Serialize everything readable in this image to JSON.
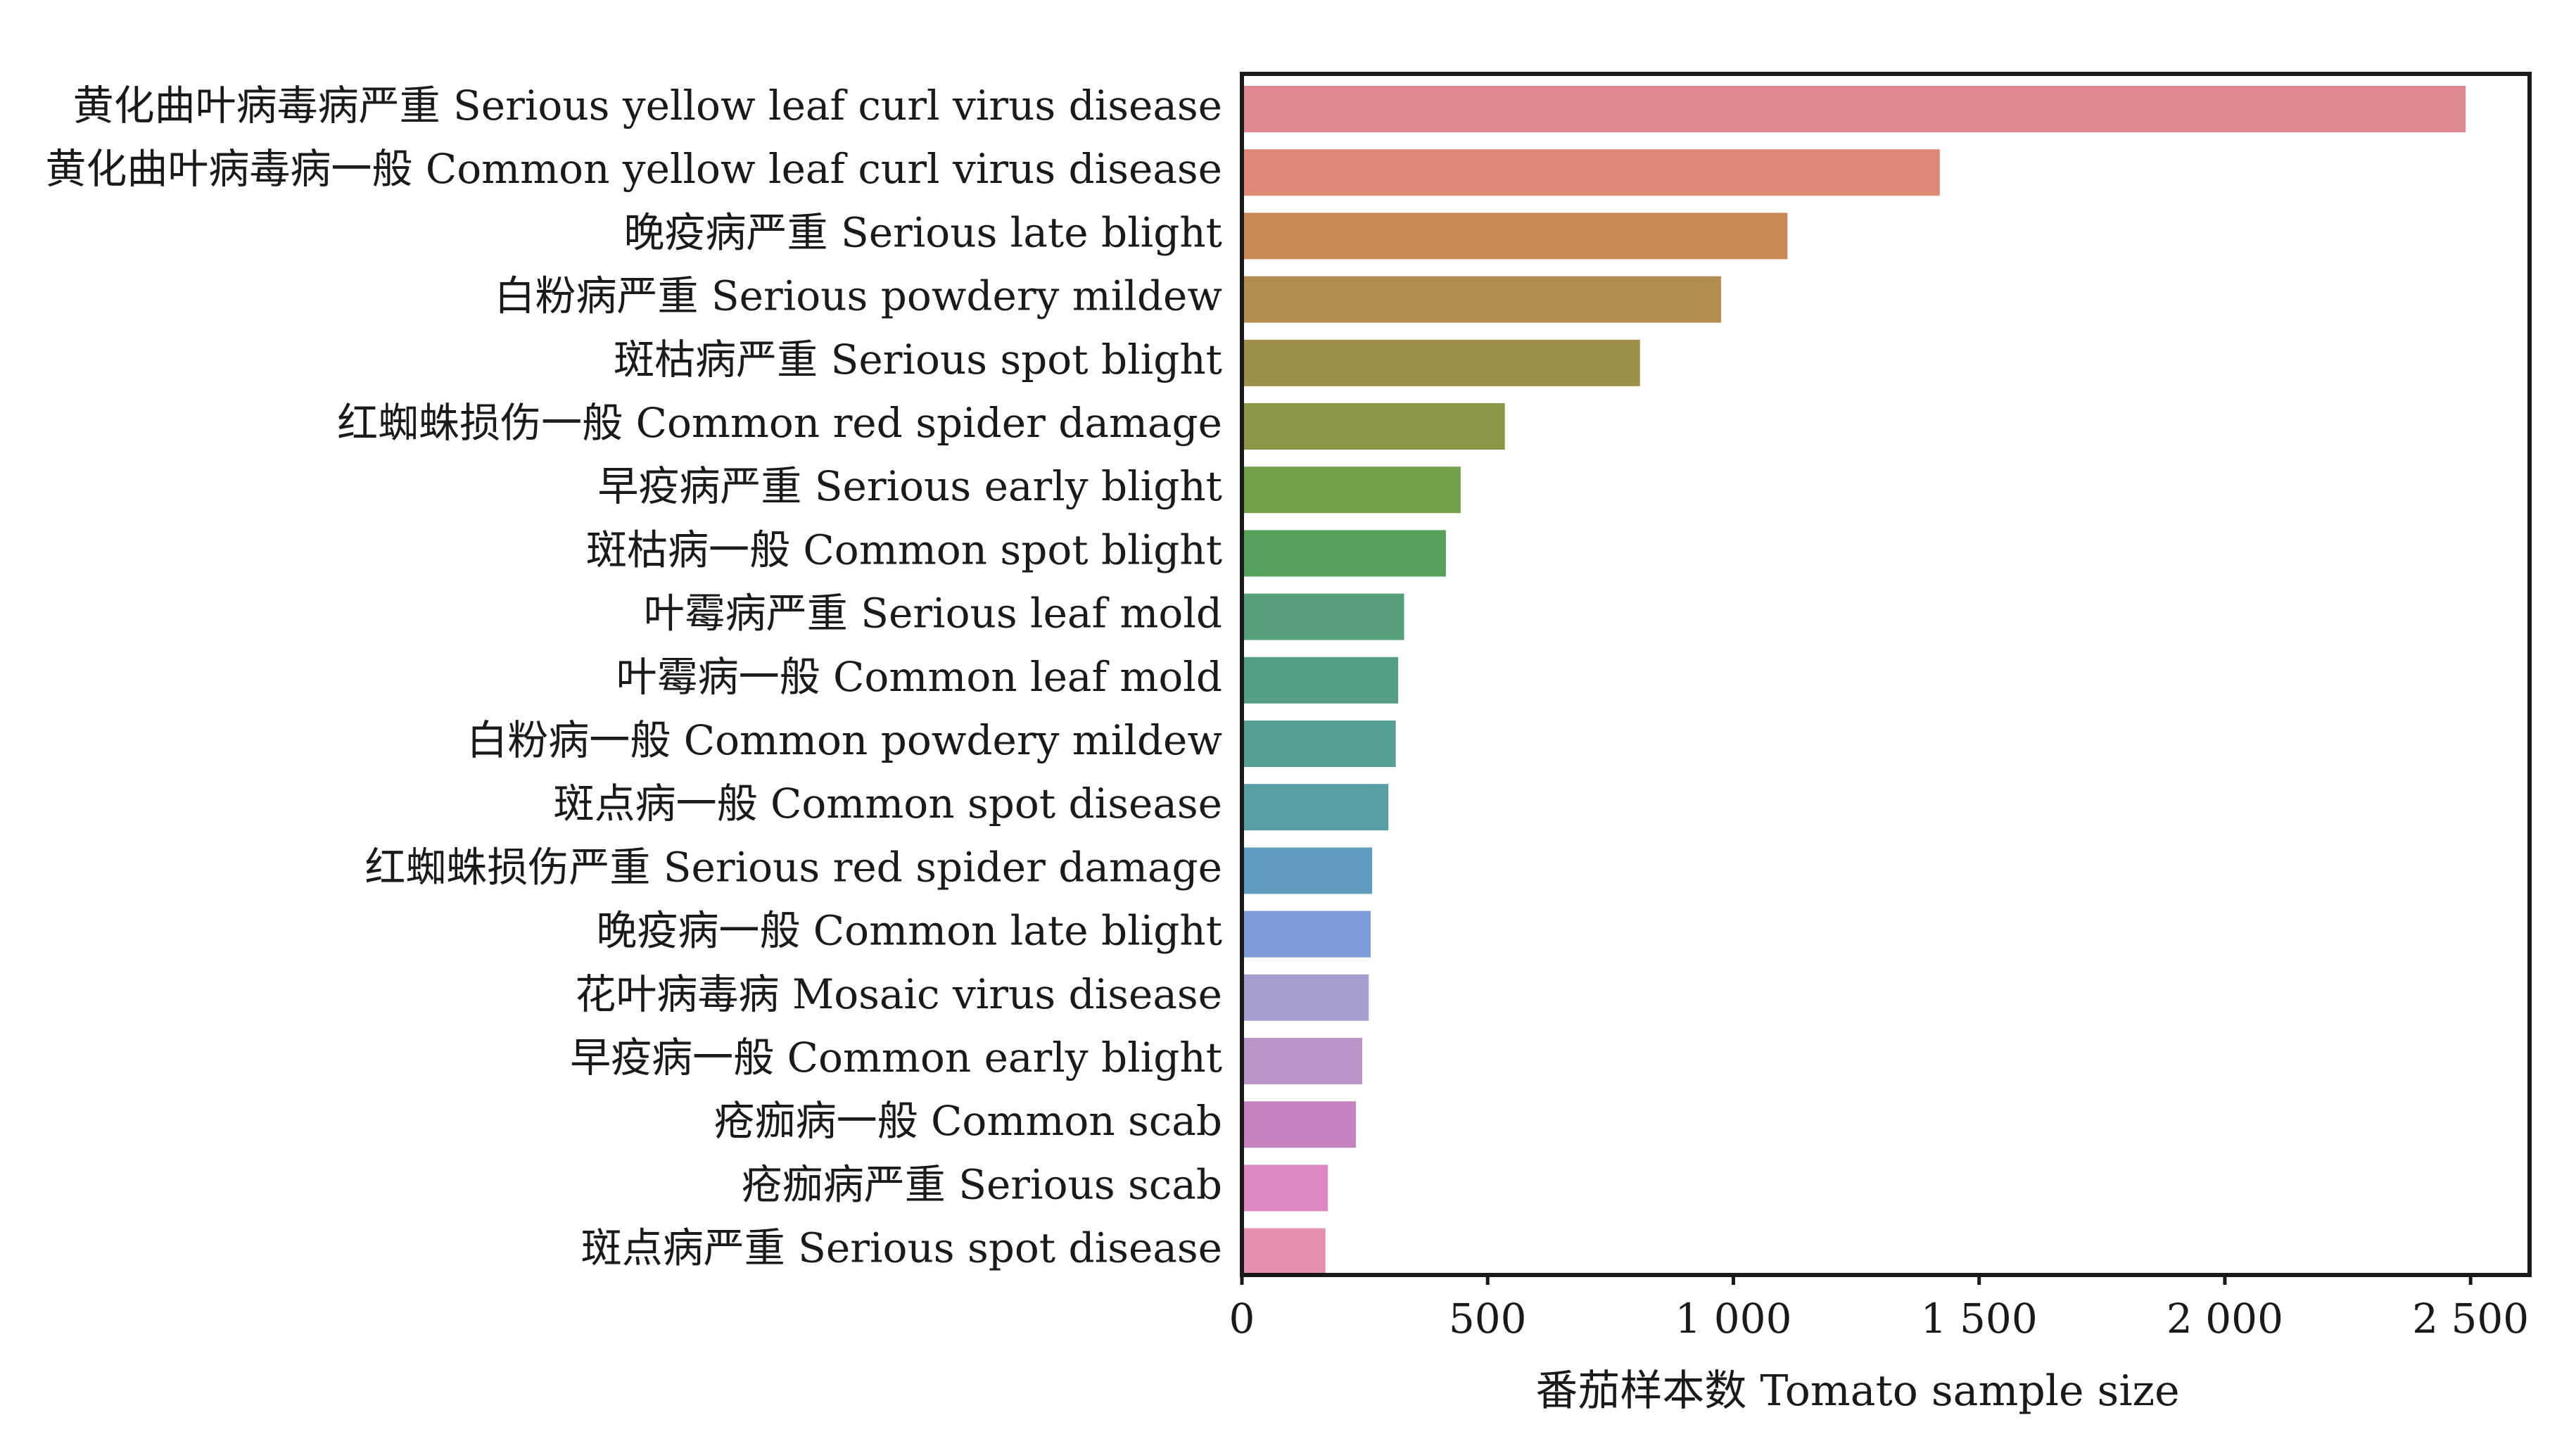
{
  "chart_data": {
    "type": "bar",
    "orientation": "horizontal",
    "title": "",
    "xlabel": "番茄样本数 Tomato sample size",
    "ylabel": "",
    "xlim": [
      0,
      2620
    ],
    "xticks": [
      0,
      500,
      1000,
      1500,
      2000,
      2500
    ],
    "xtick_labels": [
      "0",
      "500",
      "1 000",
      "1 500",
      "2 000",
      "2 500"
    ],
    "grid": false,
    "categories": [
      "黄化曲叶病毒病严重 Serious yellow leaf curl virus disease",
      "黄化曲叶病毒病一般 Common yellow leaf curl virus disease",
      "晚疫病严重 Serious late blight",
      "白粉病严重 Serious powdery mildew",
      "斑枯病严重 Serious spot blight",
      "红蜘蛛损伤一般 Common red spider damage",
      "早疫病严重 Serious early blight",
      "斑枯病一般 Common spot blight",
      "叶霉病严重 Serious leaf mold",
      "叶霉病一般 Common leaf mold",
      "白粉病一般 Common powdery mildew",
      "斑点病一般 Common spot disease",
      "红蜘蛛损伤严重 Serious red spider damage",
      "晚疫病一般 Common late blight",
      "花叶病毒病 Mosaic virus disease",
      "早疫病一般 Common early blight",
      "疮痂病一般 Common scab",
      "疮痂病严重 Serious scab",
      "斑点病严重 Serious spot disease"
    ],
    "values": [
      2490,
      1420,
      1110,
      975,
      810,
      535,
      445,
      415,
      330,
      318,
      313,
      298,
      265,
      262,
      258,
      245,
      232,
      175,
      170
    ],
    "colors": [
      "#e08890",
      "#de8876",
      "#c88a55",
      "#b38d50",
      "#9e8f48",
      "#8e9648",
      "#70a048",
      "#57a05c",
      "#55a077",
      "#559e86",
      "#569e94",
      "#5a9ea6",
      "#5f9cbf",
      "#7f9ad6",
      "#a89ed0",
      "#ba96c8",
      "#c584bd",
      "#dd88c1",
      "#e48eb2"
    ]
  }
}
